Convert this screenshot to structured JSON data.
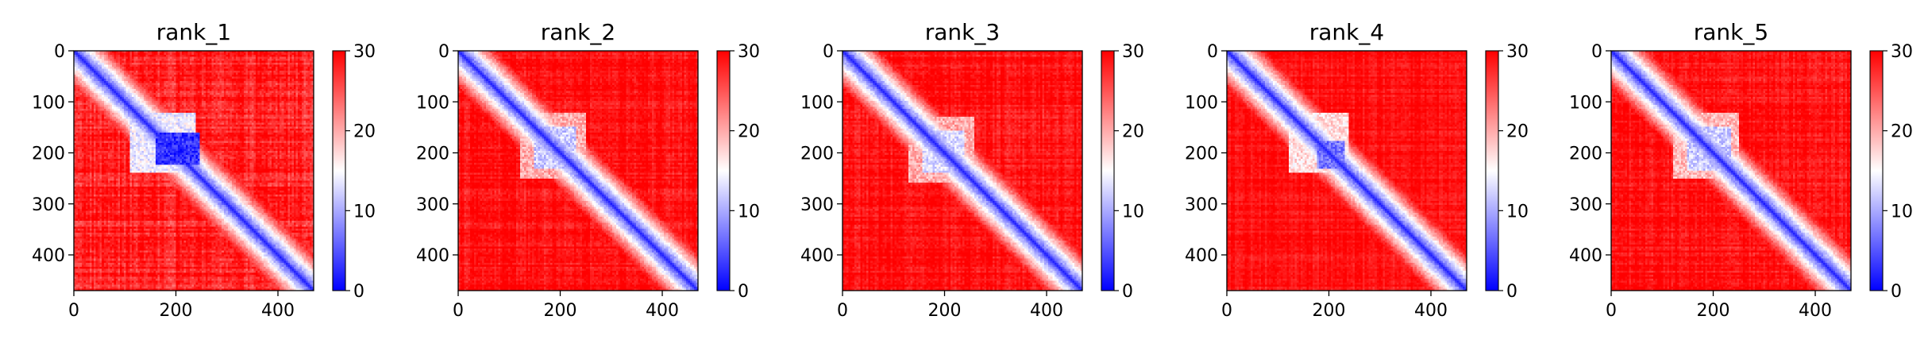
{
  "chart_data": {
    "type": "heatmap",
    "description_kind": "predicted aligned error matrices",
    "colormap": {
      "name": "bwr",
      "low": "#0000ff",
      "mid": "#ffffff",
      "high": "#ff0000"
    },
    "colorbar": {
      "vmin": 0,
      "vmax": 30,
      "ticks": [
        0,
        10,
        20,
        30
      ]
    },
    "x_range": [
      0,
      470
    ],
    "y_range": [
      0,
      470
    ],
    "x_ticks": [
      0,
      200,
      400
    ],
    "y_ticks": [
      0,
      100,
      200,
      300,
      400
    ],
    "panels": [
      {
        "title": "rank_1",
        "background": 28,
        "noise": 3.5,
        "diag_width": 6,
        "blobs": [
          {
            "i0": 120,
            "i1": 240,
            "j0": 110,
            "j1": 240,
            "value": 14
          },
          {
            "i0": 160,
            "i1": 225,
            "j0": 160,
            "j1": 245,
            "value": 3
          }
        ],
        "diag_spots": [
          200,
          310,
          405,
          450
        ]
      },
      {
        "title": "rank_2",
        "background": 29,
        "noise": 2.5,
        "diag_width": 5,
        "blobs": [
          {
            "i0": 120,
            "i1": 250,
            "j0": 120,
            "j1": 250,
            "value": 20
          },
          {
            "i0": 150,
            "i1": 230,
            "j0": 150,
            "j1": 230,
            "value": 12
          }
        ],
        "diag_spots": [
          160,
          195,
          300,
          400
        ]
      },
      {
        "title": "rank_3",
        "background": 29,
        "noise": 2.5,
        "diag_width": 5,
        "blobs": [
          {
            "i0": 130,
            "i1": 260,
            "j0": 130,
            "j1": 260,
            "value": 20
          },
          {
            "i0": 155,
            "i1": 240,
            "j0": 155,
            "j1": 240,
            "value": 13
          }
        ],
        "diag_spots": [
          50,
          160,
          200,
          320,
          400
        ]
      },
      {
        "title": "rank_4",
        "background": 29,
        "noise": 2,
        "diag_width": 5,
        "blobs": [
          {
            "i0": 120,
            "i1": 240,
            "j0": 120,
            "j1": 240,
            "value": 17
          },
          {
            "i0": 175,
            "i1": 230,
            "j0": 175,
            "j1": 230,
            "value": 7
          }
        ],
        "diag_spots": [
          50,
          200,
          300,
          400
        ]
      },
      {
        "title": "rank_5",
        "background": 29,
        "noise": 2.5,
        "diag_width": 5,
        "blobs": [
          {
            "i0": 120,
            "i1": 250,
            "j0": 120,
            "j1": 250,
            "value": 19
          },
          {
            "i0": 150,
            "i1": 235,
            "j0": 150,
            "j1": 235,
            "value": 12
          }
        ],
        "diag_spots": [
          50,
          160,
          190,
          300,
          400
        ]
      }
    ]
  }
}
